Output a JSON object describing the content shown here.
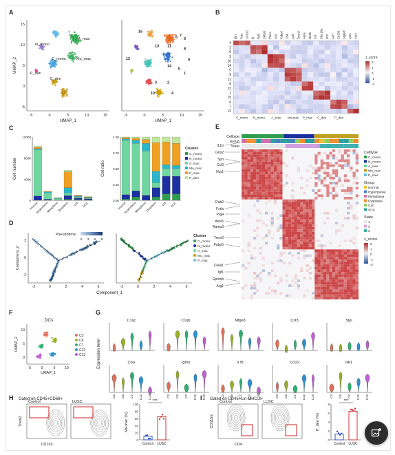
{
  "panels": {
    "A": {
      "label": "A",
      "xlabel": "UMAP_1",
      "ylabel": "UMAP_2",
      "ticks_x": [
        "-5",
        "0",
        "5",
        "10",
        "15"
      ],
      "ticks_y": [
        "-5",
        "0",
        "5",
        "10",
        "15"
      ],
      "left_labels": [
        "N_mono",
        "C_mono",
        "A_mac",
        "Mo_mac",
        "P_den",
        "C_den"
      ],
      "right_labels": [
        "15",
        "13",
        "12",
        "11",
        "5",
        "6",
        "7",
        "8",
        "9",
        "14",
        "0",
        "1",
        "2",
        "3",
        "10",
        "4"
      ]
    },
    "B": {
      "label": "B",
      "rows": [
        "4",
        "2",
        "0",
        "3",
        "10",
        "14",
        "5",
        "9",
        "11",
        "8",
        "13",
        "1",
        "15",
        "6",
        "7",
        "12"
      ],
      "cols": [
        "Ifitm",
        "Fcer",
        "Cx3cr1",
        "Ifi",
        "Itgal",
        "Cebpb",
        "Pla1a",
        "Lrp1",
        "Fabp4",
        "Ctsk",
        "Ccl2",
        "Trem2",
        "Apoe",
        "Mertk",
        "Tnf",
        "Clec10a",
        "Flt3",
        "Ccr7",
        "Cd209",
        "Siglech",
        "Ly6c",
        "Ccr2"
      ],
      "groups": [
        "C_mono",
        "N_mono",
        "A_mac",
        "Mo-mac",
        "P_mac",
        "C_den",
        "P_den"
      ],
      "legend_title": "z_score",
      "legend_ticks": [
        "2",
        "1",
        "0",
        "-1",
        "-2"
      ]
    },
    "C": {
      "label": "C",
      "ylabel_left": "Cell number",
      "ylabel_right": "Cell ratio",
      "left_ticks": [
        "0",
        "4000",
        "8000",
        "12000"
      ],
      "right_ticks": [
        "0.00",
        "0.25",
        "0.50",
        "0.75",
        "1.00"
      ],
      "categories": [
        "Normal",
        "Hyperplasia",
        "Metaplasia",
        "Dysplasia",
        "CIS",
        "SCC"
      ],
      "legend_title": "Cluster",
      "legend": [
        "C_mono",
        "N_mono",
        "A_mac",
        "Mo_mac",
        "P_mac",
        "P_den"
      ],
      "colors": [
        "#2e9e4e",
        "#1a2fa0",
        "#6fd6a0",
        "#2ab7c9",
        "#f0a020",
        "#bfe89a"
      ]
    },
    "D": {
      "label": "D",
      "xlabel": "Component_1",
      "ylabel": "Component_2",
      "pseudotime_title": "Pseudotime",
      "pseudotime_ticks": [
        "0",
        "3",
        "6",
        "9"
      ],
      "ticks_x": [
        "-2",
        "0",
        "2",
        "4",
        "6"
      ],
      "ticks_y": [
        "-2",
        "0",
        "2"
      ],
      "legend_title": "Cluster",
      "legend": [
        "C_mono",
        "N_mono",
        "A_mac",
        "Mo_mac",
        "P_mac"
      ],
      "colors": [
        "#2e9e4e",
        "#1a2fa0",
        "#6fd6a0",
        "#c0a020",
        "#6cc3d5"
      ]
    },
    "E": {
      "label": "E",
      "top_tracks": [
        "Celltype",
        "Group",
        "State"
      ],
      "genes": [
        "IL1b",
        "G0s2",
        "Spn",
        "Ccl3",
        "Nrp1",
        "Dab2",
        "Fcrls",
        "Prg4",
        "Alox5",
        "Ramp3",
        "Trem2",
        "Fabp5",
        "Celal1",
        "Igf1",
        "Gpnmb",
        "Arg1"
      ],
      "legend_celltype_title": "Celltype",
      "legend_celltype": [
        "C_mono",
        "N_mono",
        "A_mac",
        "Mo_mac",
        "P_mac"
      ],
      "legend_group_title": "Group",
      "legend_group": [
        "Normal",
        "Hyperplasia",
        "Metaplasia",
        "Dysplasia",
        "CIS",
        "SCC"
      ],
      "legend_state_title": "State",
      "legend_state": [
        "1",
        "2",
        "3"
      ],
      "legend_zscore_title": "z_score",
      "legend_zscore": [
        "2",
        "1",
        "0",
        "-1",
        "-2"
      ]
    },
    "F": {
      "label": "F",
      "title": "DCs",
      "xlabel": "UMAP_1",
      "ylabel": "UMAP_2",
      "ticks_x": [
        "-5",
        "0",
        "5",
        "10"
      ],
      "ticks_y": [
        "0",
        "5",
        "10"
      ],
      "legend": [
        "C3",
        "C6",
        "C7",
        "C12",
        "C13"
      ],
      "colors": [
        "#e0705a",
        "#9ab02a",
        "#30b070",
        "#3090d0",
        "#c060d0"
      ]
    },
    "G": {
      "label": "G",
      "ylabel": "Expression level",
      "genes_top": [
        "C1qc",
        "C1qb",
        "Mfge8",
        "Cst3",
        "Slpi"
      ],
      "genes_bottom": [
        "Ctss",
        "Ighm",
        "Ir f8",
        "Ccl22",
        "Il4i1"
      ],
      "clusters": [
        "C3",
        "C6",
        "C7",
        "C12",
        "C13"
      ],
      "colors": [
        "#e0705a",
        "#9ab02a",
        "#30b070",
        "#3090d0",
        "#c060d0"
      ]
    },
    "H": {
      "label": "H",
      "gate": "Gated on CD45+CD68+",
      "plot1": "Control",
      "plot2": "LUSC",
      "xlabel": "CD163",
      "ylabel": "Trem2",
      "bar_ylabel": "Mo-mac (%)",
      "ticks": [
        "0",
        "20",
        "40",
        "60",
        "80",
        "100"
      ],
      "sig": "***",
      "categories": [
        "Control",
        "LUSC"
      ],
      "values": [
        10,
        65
      ]
    },
    "I": {
      "label": "I",
      "gate": "Gated on CD45+Lin-MHC II+",
      "plot1": "Control",
      "plot2": "LUSC",
      "xlabel": "CD4",
      "ylabel": "CD11b/c",
      "bar_ylabel": "P_den (%)",
      "ticks": [
        "0",
        "2",
        "4",
        "6",
        "8"
      ],
      "sig": "***",
      "categories": [
        "Control",
        "LUSC"
      ],
      "values": [
        1.3,
        6.4
      ]
    }
  },
  "chart_data": [
    {
      "type": "bar",
      "panel": "C-left",
      "ylabel": "Cell number",
      "ylim": [
        0,
        12000
      ],
      "categories": [
        "Normal",
        "Hyperplasia",
        "Metaplasia",
        "Dysplasia",
        "CIS",
        "SCC"
      ],
      "series": [
        {
          "name": "C_mono",
          "values": [
            0,
            50,
            0,
            200,
            150,
            100
          ]
        },
        {
          "name": "N_mono",
          "values": [
            800,
            150,
            40,
            700,
            300,
            200
          ]
        },
        {
          "name": "A_mac",
          "values": [
            8800,
            1200,
            300,
            500,
            250,
            150
          ]
        },
        {
          "name": "Mo_mac",
          "values": [
            200,
            200,
            100,
            1000,
            100,
            100
          ]
        },
        {
          "name": "P_mac",
          "values": [
            300,
            100,
            50,
            3000,
            150,
            100
          ]
        },
        {
          "name": "P_den",
          "values": [
            100,
            0,
            0,
            300,
            50,
            50
          ]
        }
      ]
    },
    {
      "type": "bar",
      "panel": "C-right",
      "ylabel": "Cell ratio",
      "ylim": [
        0,
        1
      ],
      "categories": [
        "Normal",
        "Hyperplasia",
        "Metaplasia",
        "Dysplasia",
        "CIS",
        "SCC"
      ],
      "series": [
        {
          "name": "C_mono",
          "values": [
            0.02,
            0.05,
            0.0,
            0.05,
            0.1,
            0.1
          ]
        },
        {
          "name": "N_mono",
          "values": [
            0.07,
            0.1,
            0.08,
            0.15,
            0.28,
            0.28
          ]
        },
        {
          "name": "A_mac",
          "values": [
            0.86,
            0.75,
            0.7,
            0.08,
            0.12,
            0.12
          ]
        },
        {
          "name": "Mo_mac",
          "values": [
            0.02,
            0.05,
            0.12,
            0.18,
            0.06,
            0.05
          ]
        },
        {
          "name": "P_mac",
          "values": [
            0.02,
            0.03,
            0.06,
            0.45,
            0.36,
            0.35
          ]
        },
        {
          "name": "P_den",
          "values": [
            0.01,
            0.02,
            0.04,
            0.09,
            0.08,
            0.1
          ]
        }
      ]
    },
    {
      "type": "bar",
      "panel": "H",
      "ylabel": "Mo-mac (%)",
      "ylim": [
        0,
        100
      ],
      "categories": [
        "Control",
        "LUSC"
      ],
      "values": [
        10,
        65
      ]
    },
    {
      "type": "bar",
      "panel": "I",
      "ylabel": "P_den (%)",
      "ylim": [
        0,
        8
      ],
      "categories": [
        "Control",
        "LUSC"
      ],
      "values": [
        1.3,
        6.4
      ]
    }
  ],
  "fab": {
    "icon": "add-image-icon"
  }
}
